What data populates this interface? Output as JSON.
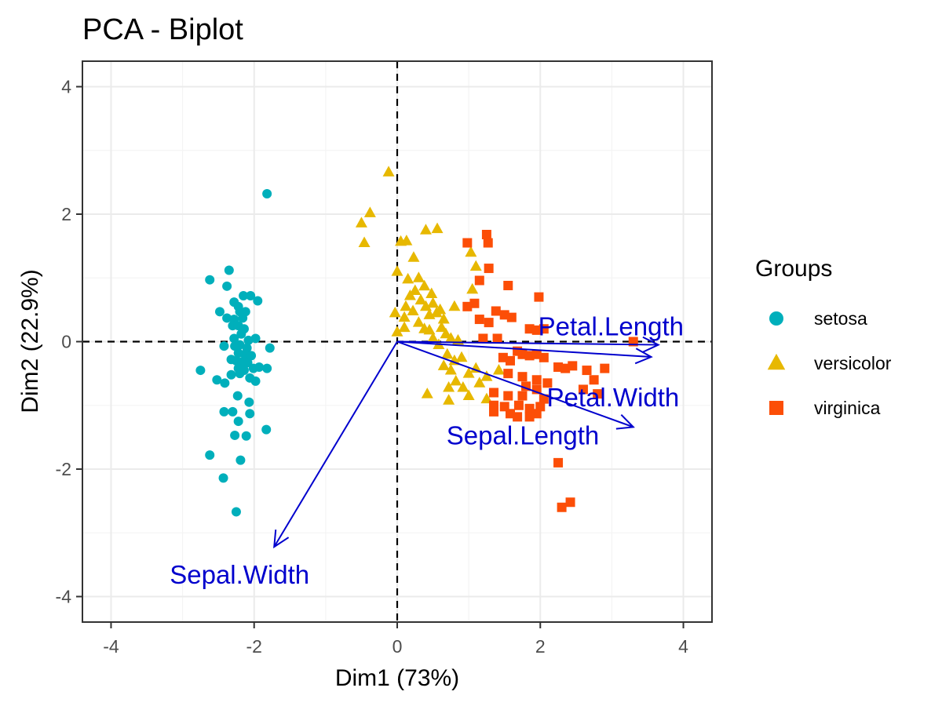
{
  "chart_data": {
    "type": "scatter",
    "subtype": "pca-biplot",
    "title": "PCA - Biplot",
    "xlabel": "Dim1 (73%)",
    "ylabel": "Dim2 (22.9%)",
    "xlim": [
      -4.4,
      4.4
    ],
    "ylim": [
      -4.4,
      4.4
    ],
    "x_ticks": [
      -4,
      -2,
      0,
      2,
      4
    ],
    "y_ticks": [
      -4,
      -2,
      0,
      2,
      4
    ],
    "x_tick_labels": [
      "-4",
      "-2",
      "0",
      "2",
      "4"
    ],
    "y_tick_labels": [
      "-4",
      "-2",
      "0",
      "2",
      "4"
    ],
    "grid": true,
    "reference_lines": {
      "x": 0,
      "y": 0,
      "style": "dashed"
    },
    "legend": {
      "title": "Groups",
      "placement": "right",
      "entries": [
        {
          "name": "setosa",
          "shape": "circle",
          "color": "#00AFBB"
        },
        {
          "name": "versicolor",
          "shape": "triangle",
          "color": "#E7B800"
        },
        {
          "name": "virginica",
          "shape": "square",
          "color": "#FC4E07"
        }
      ]
    },
    "series": [
      {
        "name": "setosa",
        "shape": "circle",
        "color": "#00AFBB",
        "points": [
          [
            -1.82,
            2.32
          ],
          [
            -2.35,
            1.12
          ],
          [
            -2.62,
            0.97
          ],
          [
            -2.38,
            0.87
          ],
          [
            -2.15,
            0.72
          ],
          [
            -2.05,
            0.72
          ],
          [
            -1.95,
            0.64
          ],
          [
            -2.28,
            0.62
          ],
          [
            -2.22,
            0.55
          ],
          [
            -2.48,
            0.47
          ],
          [
            -2.2,
            0.47
          ],
          [
            -2.12,
            0.47
          ],
          [
            -2.38,
            0.37
          ],
          [
            -2.28,
            0.35
          ],
          [
            -2.16,
            0.37
          ],
          [
            -2.3,
            0.25
          ],
          [
            -2.22,
            0.25
          ],
          [
            -2.14,
            0.2
          ],
          [
            -2.18,
            0.12
          ],
          [
            -2.28,
            0.05
          ],
          [
            -2.08,
            0.02
          ],
          [
            -1.98,
            0.05
          ],
          [
            -2.42,
            -0.07
          ],
          [
            -2.27,
            -0.07
          ],
          [
            -2.2,
            -0.05
          ],
          [
            -2.1,
            -0.1
          ],
          [
            -1.78,
            -0.1
          ],
          [
            -2.22,
            -0.18
          ],
          [
            -2.13,
            -0.2
          ],
          [
            -2.04,
            -0.22
          ],
          [
            -2.32,
            -0.28
          ],
          [
            -2.25,
            -0.3
          ],
          [
            -2.17,
            -0.32
          ],
          [
            -2.09,
            -0.33
          ],
          [
            -1.93,
            -0.4
          ],
          [
            -2.22,
            -0.42
          ],
          [
            -2.14,
            -0.45
          ],
          [
            -2.01,
            -0.42
          ],
          [
            -2.75,
            -0.45
          ],
          [
            -1.82,
            -0.42
          ],
          [
            -2.32,
            -0.52
          ],
          [
            -2.2,
            -0.5
          ],
          [
            -2.06,
            -0.57
          ],
          [
            -1.98,
            -0.62
          ],
          [
            -2.52,
            -0.6
          ],
          [
            -2.41,
            -0.65
          ],
          [
            -2.23,
            -0.85
          ],
          [
            -2.07,
            -0.95
          ],
          [
            -2.42,
            -1.1
          ],
          [
            -2.3,
            -1.1
          ],
          [
            -2.06,
            -1.13
          ],
          [
            -2.22,
            -1.25
          ],
          [
            -2.27,
            -1.47
          ],
          [
            -2.11,
            -1.48
          ],
          [
            -1.83,
            -1.38
          ],
          [
            -2.62,
            -1.78
          ],
          [
            -2.19,
            -1.86
          ],
          [
            -2.43,
            -2.14
          ],
          [
            -2.25,
            -2.67
          ]
        ]
      },
      {
        "name": "versicolor",
        "shape": "triangle",
        "color": "#E7B800",
        "points": [
          [
            -0.12,
            2.66
          ],
          [
            -0.38,
            2.02
          ],
          [
            -0.5,
            1.86
          ],
          [
            -0.46,
            1.55
          ],
          [
            0.05,
            1.57
          ],
          [
            0.13,
            1.58
          ],
          [
            0.4,
            1.75
          ],
          [
            0.56,
            1.77
          ],
          [
            0.23,
            1.32
          ],
          [
            0.0,
            1.1
          ],
          [
            0.15,
            0.98
          ],
          [
            0.3,
            1.0
          ],
          [
            0.38,
            0.87
          ],
          [
            0.48,
            0.75
          ],
          [
            0.18,
            0.72
          ],
          [
            0.25,
            0.8
          ],
          [
            0.33,
            0.65
          ],
          [
            0.4,
            0.55
          ],
          [
            0.5,
            0.6
          ],
          [
            0.6,
            0.5
          ],
          [
            0.12,
            0.55
          ],
          [
            0.22,
            0.48
          ],
          [
            0.45,
            0.42
          ],
          [
            0.55,
            0.45
          ],
          [
            0.65,
            0.35
          ],
          [
            -0.03,
            0.45
          ],
          [
            0.1,
            0.38
          ],
          [
            0.3,
            0.3
          ],
          [
            0.38,
            0.2
          ],
          [
            0.45,
            0.18
          ],
          [
            0.62,
            0.22
          ],
          [
            0.68,
            0.12
          ],
          [
            0.75,
            0.05
          ],
          [
            0.85,
            0.02
          ],
          [
            0.5,
            0.05
          ],
          [
            0.1,
            0.22
          ],
          [
            0.0,
            0.15
          ],
          [
            0.8,
            0.55
          ],
          [
            1.05,
            0.82
          ],
          [
            1.1,
            1.18
          ],
          [
            1.03,
            1.4
          ],
          [
            0.58,
            -0.05
          ],
          [
            0.7,
            -0.2
          ],
          [
            0.8,
            -0.3
          ],
          [
            0.9,
            -0.25
          ],
          [
            0.65,
            -0.38
          ],
          [
            0.75,
            -0.45
          ],
          [
            1.0,
            -0.5
          ],
          [
            1.1,
            -0.42
          ],
          [
            0.72,
            -0.72
          ],
          [
            0.82,
            -0.62
          ],
          [
            0.72,
            -0.92
          ],
          [
            0.92,
            -0.72
          ],
          [
            1.15,
            -0.65
          ],
          [
            1.25,
            -0.55
          ],
          [
            1.42,
            -0.45
          ],
          [
            1.0,
            -0.85
          ],
          [
            1.25,
            -0.9
          ],
          [
            0.42,
            -0.82
          ]
        ]
      },
      {
        "name": "virginica",
        "shape": "square",
        "color": "#FC4E07",
        "points": [
          [
            1.25,
            1.68
          ],
          [
            1.27,
            1.55
          ],
          [
            0.98,
            1.55
          ],
          [
            1.28,
            1.15
          ],
          [
            1.15,
            0.96
          ],
          [
            1.55,
            0.88
          ],
          [
            1.98,
            0.7
          ],
          [
            1.08,
            0.6
          ],
          [
            0.98,
            0.55
          ],
          [
            1.15,
            0.35
          ],
          [
            1.28,
            0.3
          ],
          [
            1.38,
            0.48
          ],
          [
            1.5,
            0.42
          ],
          [
            1.6,
            0.38
          ],
          [
            1.85,
            0.2
          ],
          [
            1.95,
            0.18
          ],
          [
            2.05,
            0.2
          ],
          [
            1.2,
            0.05
          ],
          [
            1.4,
            0.05
          ],
          [
            1.68,
            -0.15
          ],
          [
            1.75,
            -0.2
          ],
          [
            1.85,
            -0.22
          ],
          [
            1.95,
            -0.2
          ],
          [
            2.05,
            -0.25
          ],
          [
            1.48,
            -0.25
          ],
          [
            1.58,
            -0.3
          ],
          [
            2.25,
            -0.4
          ],
          [
            2.35,
            -0.42
          ],
          [
            2.45,
            -0.38
          ],
          [
            2.65,
            -0.45
          ],
          [
            2.9,
            -0.42
          ],
          [
            3.3,
            0.0
          ],
          [
            1.55,
            -0.5
          ],
          [
            1.75,
            -0.55
          ],
          [
            1.95,
            -0.6
          ],
          [
            2.1,
            -0.65
          ],
          [
            2.75,
            -0.6
          ],
          [
            1.8,
            -0.7
          ],
          [
            1.95,
            -0.75
          ],
          [
            2.6,
            -0.75
          ],
          [
            2.8,
            -0.82
          ],
          [
            1.35,
            -0.8
          ],
          [
            1.55,
            -0.85
          ],
          [
            1.75,
            -0.85
          ],
          [
            2.05,
            -0.9
          ],
          [
            1.5,
            -1.02
          ],
          [
            1.7,
            -1.0
          ],
          [
            1.85,
            -1.05
          ],
          [
            2.0,
            -1.02
          ],
          [
            1.35,
            -1.0
          ],
          [
            1.35,
            -1.1
          ],
          [
            1.95,
            -1.13
          ],
          [
            1.85,
            -1.18
          ],
          [
            1.58,
            -1.13
          ],
          [
            1.68,
            -1.18
          ],
          [
            2.25,
            -1.9
          ],
          [
            2.42,
            -2.52
          ],
          [
            2.3,
            -2.6
          ]
        ]
      }
    ],
    "variables": [
      {
        "name": "Petal.Length",
        "x": 3.65,
        "y": -0.05
      },
      {
        "name": "Petal.Width",
        "x": 3.55,
        "y": -0.24
      },
      {
        "name": "Sepal.Length",
        "x": 3.3,
        "y": -1.34
      },
      {
        "name": "Sepal.Width",
        "x": -1.72,
        "y": -3.22
      }
    ],
    "variable_color": "#0000CD"
  }
}
